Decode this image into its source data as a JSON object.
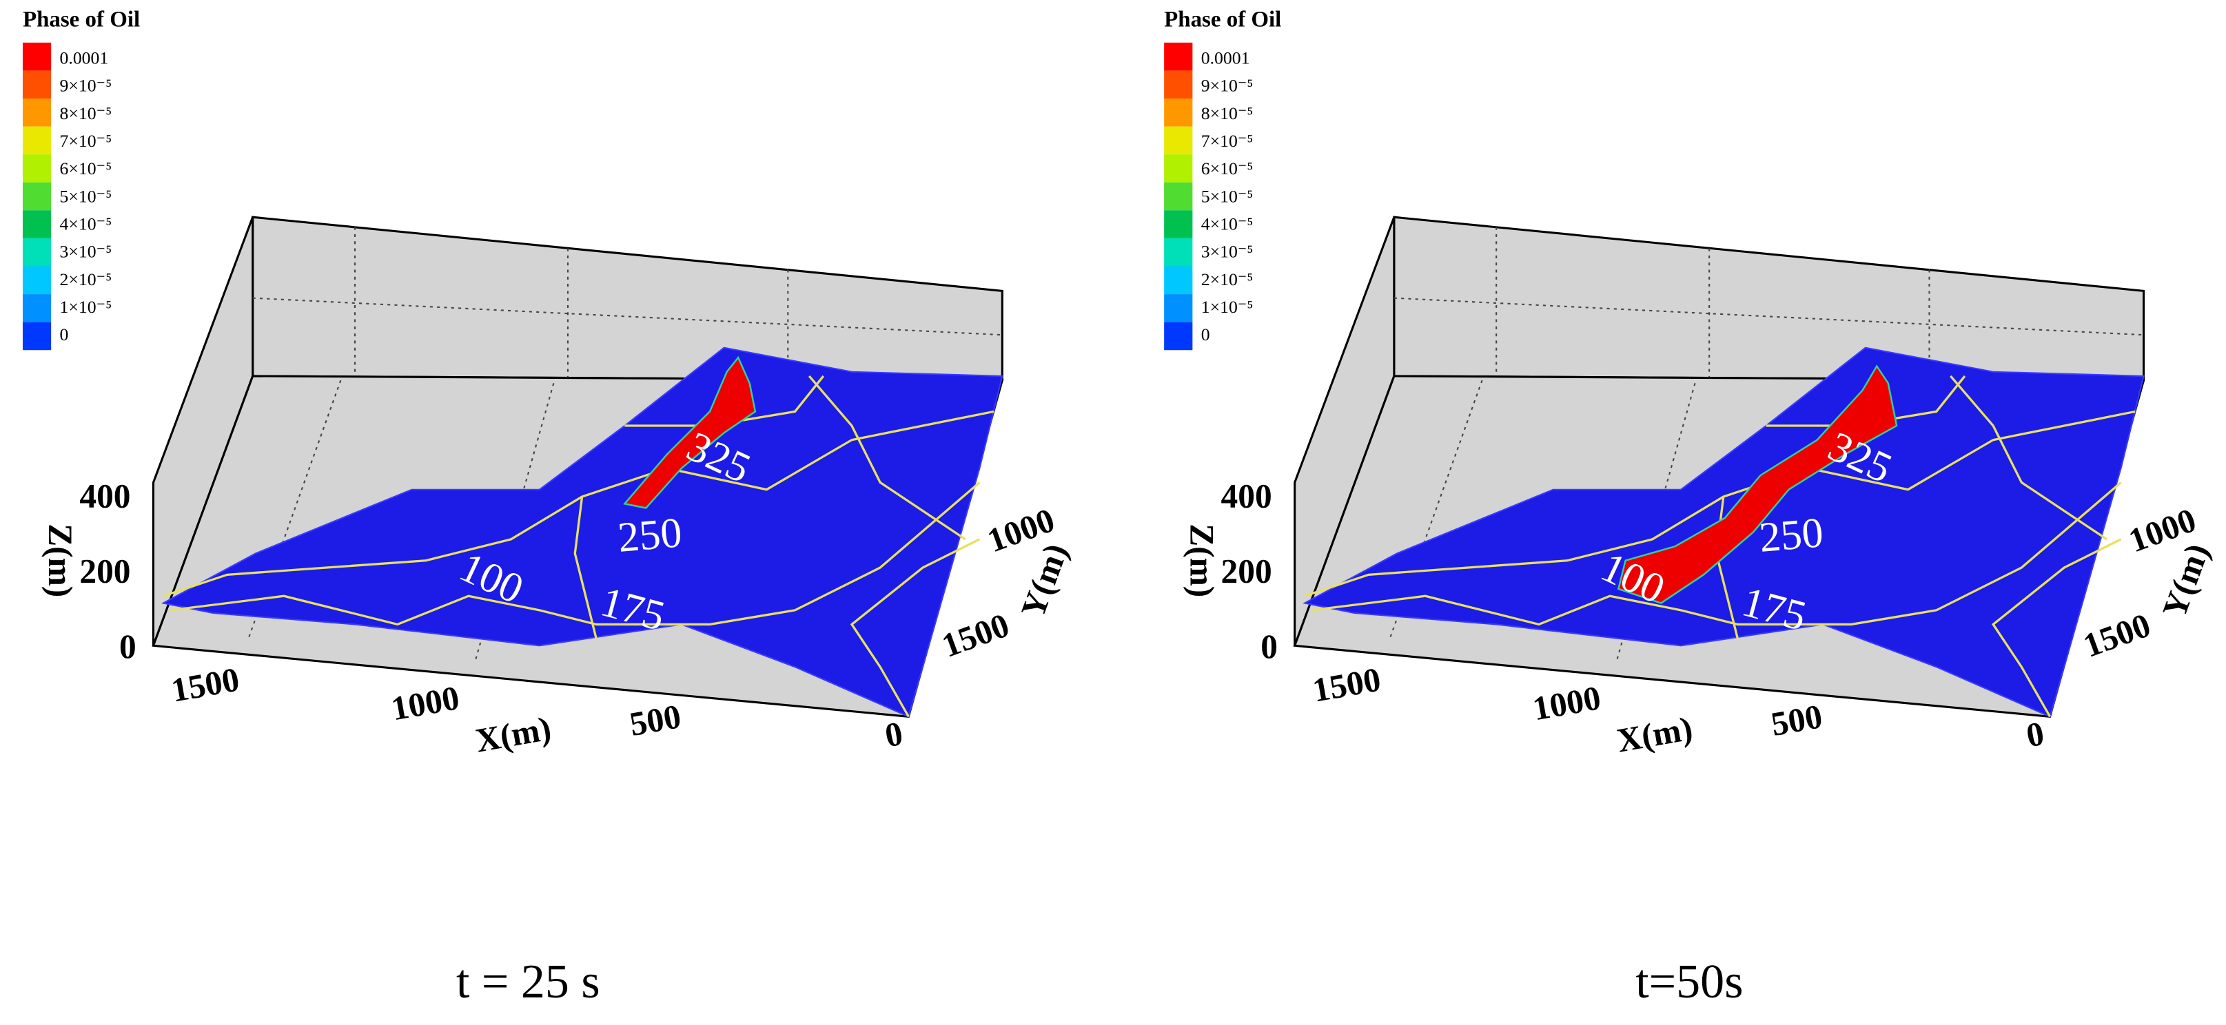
{
  "panels": [
    {
      "legend": {
        "title": "Phase of Oil",
        "labels": [
          "0.0001",
          "9×10⁻⁵",
          "8×10⁻⁵",
          "7×10⁻⁵",
          "6×10⁻⁵",
          "5×10⁻⁵",
          "4×10⁻⁵",
          "3×10⁻⁵",
          "2×10⁻⁵",
          "1×10⁻⁵",
          "0"
        ]
      },
      "z_axis": {
        "label": "Z(m)",
        "ticks": [
          "400",
          "200",
          "0"
        ]
      },
      "x_axis": {
        "label": "X(m)",
        "ticks": [
          "1500",
          "1000",
          "500",
          "0"
        ]
      },
      "y_axis": {
        "label": "Y(m)",
        "ticks": [
          "1000",
          "1500"
        ]
      },
      "contours": [
        "325",
        "250",
        "100",
        "175"
      ],
      "caption": "t = 25 s"
    },
    {
      "legend": {
        "title": "Phase of Oil",
        "labels": [
          "0.0001",
          "9×10⁻⁵",
          "8×10⁻⁵",
          "7×10⁻⁵",
          "6×10⁻⁵",
          "5×10⁻⁵",
          "4×10⁻⁵",
          "3×10⁻⁵",
          "2×10⁻⁵",
          "1×10⁻⁵",
          "0"
        ]
      },
      "z_axis": {
        "label": "Z(m)",
        "ticks": [
          "400",
          "200",
          "0"
        ]
      },
      "x_axis": {
        "label": "X(m)",
        "ticks": [
          "1500",
          "1000",
          "500",
          "0"
        ]
      },
      "y_axis": {
        "label": "Y(m)",
        "ticks": [
          "1000",
          "1500"
        ]
      },
      "contours": [
        "325",
        "250",
        "100",
        "175"
      ],
      "caption": "t=50s"
    }
  ]
}
